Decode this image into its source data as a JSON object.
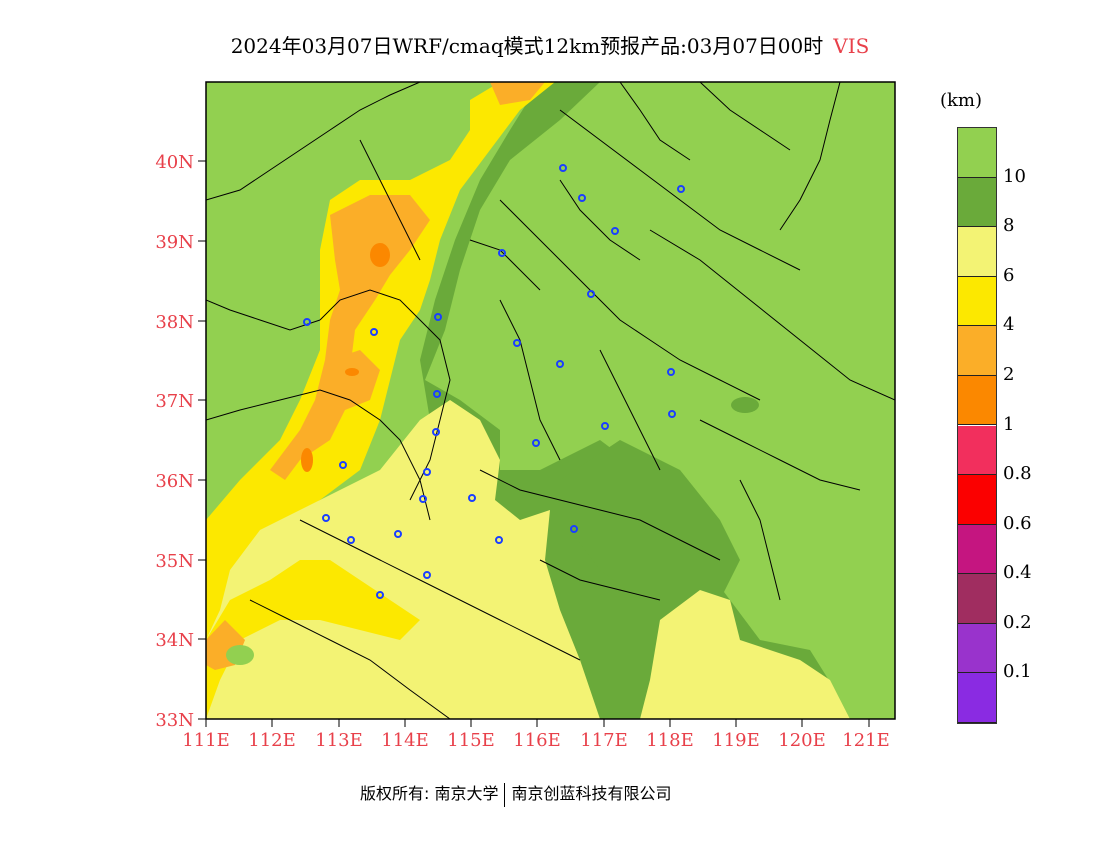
{
  "title": {
    "main": "2024年03月07日WRF/cmaq模式12km预报产品:03月07日00时",
    "variable": "VIS"
  },
  "axes": {
    "lat_labels": [
      "40N",
      "39N",
      "38N",
      "37N",
      "36N",
      "35N",
      "34N",
      "33N"
    ],
    "lon_labels": [
      "111E",
      "112E",
      "113E",
      "114E",
      "115E",
      "116E",
      "117E",
      "118E",
      "119E",
      "120E",
      "121E"
    ]
  },
  "legend": {
    "unit": "(km)",
    "labels": [
      "10",
      "8",
      "6",
      "4",
      "2",
      "1",
      "0.8",
      "0.6",
      "0.4",
      "0.2",
      "0.1"
    ],
    "colors": [
      "#92d050",
      "#6aaa3a",
      "#f3f374",
      "#fce800",
      "#fbae28",
      "#fb8800",
      "#f22f5d",
      "#fb0000",
      "#c51580",
      "#a02d60",
      "#9933cc",
      "#8a2be2"
    ]
  },
  "footer": {
    "left": "版权所有: 南京大学",
    "right": "南京创蓝科技有限公司"
  },
  "map_colors": {
    "vis_gt10": "#92d050",
    "vis_8_10": "#6aaa3a",
    "vis_6_8": "#f3f374",
    "vis_4_6": "#fce800",
    "vis_2_4": "#fbae28",
    "vis_1_2": "#fb8800",
    "city_marker": "#1a3fff"
  }
}
